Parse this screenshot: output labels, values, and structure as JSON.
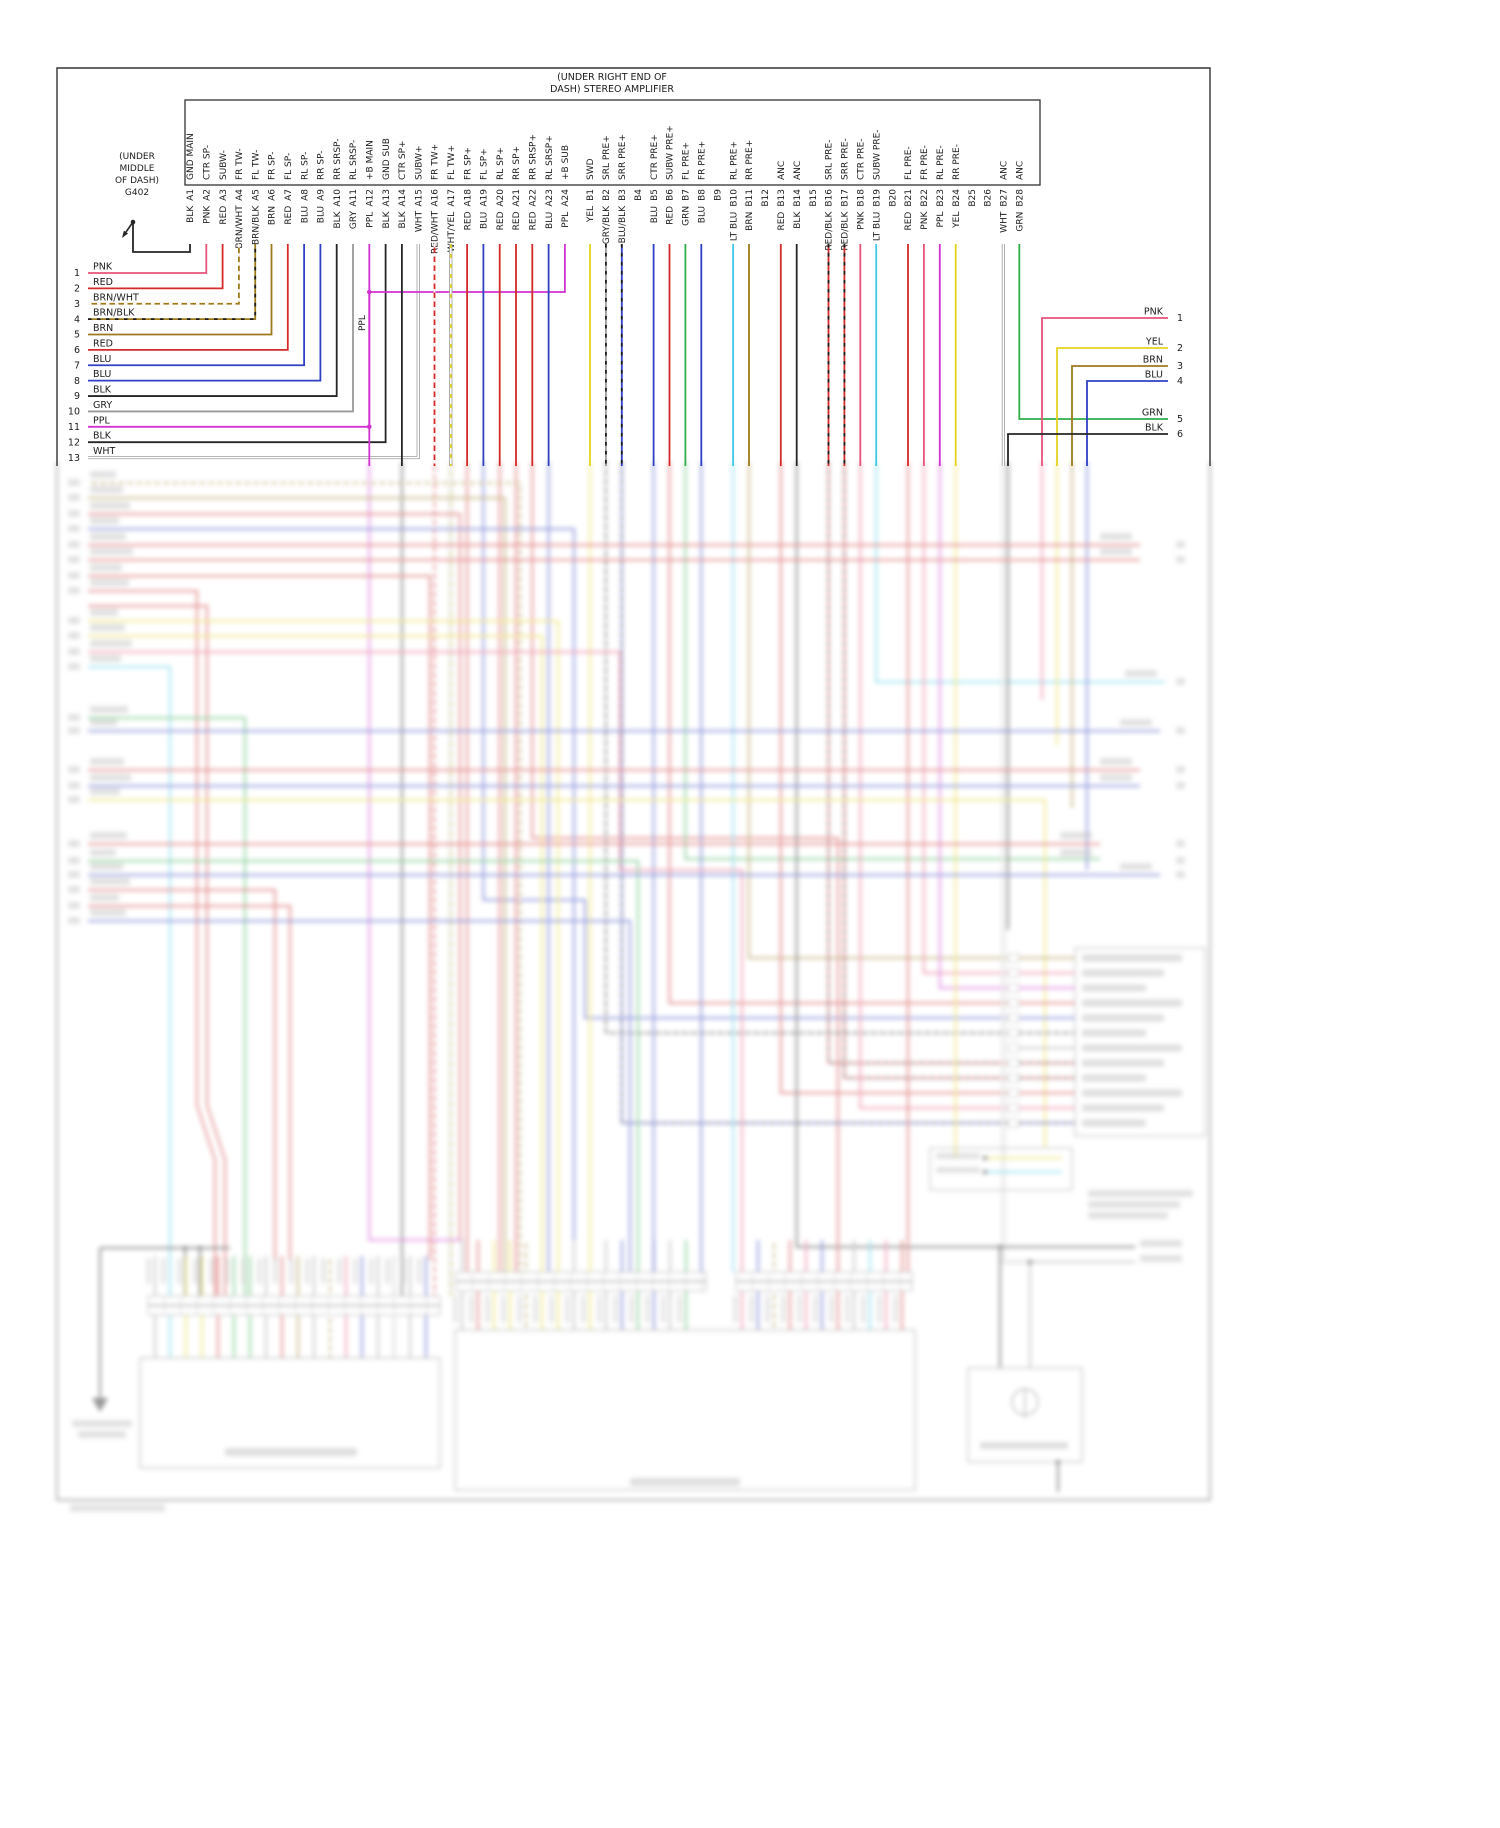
{
  "amplifier": {
    "title_line1": "(UNDER RIGHT END OF",
    "title_line2": "DASH) STEREO AMPLIFIER",
    "a_pins": [
      {
        "id": "A1",
        "signal": "GND MAIN",
        "color": "BLK"
      },
      {
        "id": "A2",
        "signal": "CTR SP-",
        "color": "PNK"
      },
      {
        "id": "A3",
        "signal": "SUBW-",
        "color": "RED"
      },
      {
        "id": "A4",
        "signal": "FR TW-",
        "color": "BRN/WHT"
      },
      {
        "id": "A5",
        "signal": "FL TW-",
        "color": "BRN/BLK"
      },
      {
        "id": "A6",
        "signal": "FR SP-",
        "color": "BRN"
      },
      {
        "id": "A7",
        "signal": "FL SP-",
        "color": "RED"
      },
      {
        "id": "A8",
        "signal": "RL SP-",
        "color": "BLU"
      },
      {
        "id": "A9",
        "signal": "RR SP-",
        "color": "BLU"
      },
      {
        "id": "A10",
        "signal": "RR SRSP-",
        "color": "BLK"
      },
      {
        "id": "A11",
        "signal": "RL SRSP-",
        "color": "GRY"
      },
      {
        "id": "A12",
        "signal": "+B MAIN",
        "color": "PPL"
      },
      {
        "id": "A13",
        "signal": "GND SUB",
        "color": "BLK"
      },
      {
        "id": "A14",
        "signal": "CTR SP+",
        "color": "BLK"
      },
      {
        "id": "A15",
        "signal": "SUBW+",
        "color": "WHT"
      },
      {
        "id": "A16",
        "signal": "FR TW+",
        "color": "RED/WHT"
      },
      {
        "id": "A17",
        "signal": "FL TW+",
        "color": "WHT/YEL"
      },
      {
        "id": "A18",
        "signal": "FR SP+",
        "color": "RED"
      },
      {
        "id": "A19",
        "signal": "FL SP+",
        "color": "BLU"
      },
      {
        "id": "A20",
        "signal": "RL SP+",
        "color": "RED"
      },
      {
        "id": "A21",
        "signal": "RR SP+",
        "color": "RED"
      },
      {
        "id": "A22",
        "signal": "RR SRSP+",
        "color": "RED"
      },
      {
        "id": "A23",
        "signal": "RL SRSP+",
        "color": "BLU"
      },
      {
        "id": "A24",
        "signal": "+B SUB",
        "color": "PPL"
      }
    ],
    "b_pins": [
      {
        "id": "B1",
        "signal": "SWD",
        "color": "YEL"
      },
      {
        "id": "B2",
        "signal": "SRL PRE+",
        "color": "GRY/BLK"
      },
      {
        "id": "B3",
        "signal": "SRR PRE+",
        "color": "BLU/BLK"
      },
      {
        "id": "B4",
        "signal": "",
        "color": ""
      },
      {
        "id": "B5",
        "signal": "CTR PRE+",
        "color": "BLU"
      },
      {
        "id": "B6",
        "signal": "SUBW PRE+",
        "color": "RED"
      },
      {
        "id": "B7",
        "signal": "FL PRE+",
        "color": "GRN"
      },
      {
        "id": "B8",
        "signal": "FR PRE+",
        "color": "BLU"
      },
      {
        "id": "B9",
        "signal": "",
        "color": ""
      },
      {
        "id": "B10",
        "signal": "RL PRE+",
        "color": "LT BLU"
      },
      {
        "id": "B11",
        "signal": "RR PRE+",
        "color": "BRN"
      },
      {
        "id": "B12",
        "signal": "",
        "color": ""
      },
      {
        "id": "B13",
        "signal": "ANC",
        "color": "RED"
      },
      {
        "id": "B14",
        "signal": "ANC",
        "color": "BLK"
      },
      {
        "id": "B15",
        "signal": "",
        "color": ""
      },
      {
        "id": "B16",
        "signal": "SRL PRE-",
        "color": "RED/BLK"
      },
      {
        "id": "B17",
        "signal": "SRR PRE-",
        "color": "RED/BLK"
      },
      {
        "id": "B18",
        "signal": "CTR PRE-",
        "color": "PNK"
      },
      {
        "id": "B19",
        "signal": "SUBW PRE-",
        "color": "LT BLU"
      },
      {
        "id": "B20",
        "signal": "",
        "color": ""
      },
      {
        "id": "B21",
        "signal": "FL PRE-",
        "color": "RED"
      },
      {
        "id": "B22",
        "signal": "FR PRE-",
        "color": "PNK"
      },
      {
        "id": "B23",
        "signal": "RL PRE-",
        "color": "PPL"
      },
      {
        "id": "B24",
        "signal": "RR PRE-",
        "color": "YEL"
      },
      {
        "id": "B25",
        "signal": "",
        "color": ""
      },
      {
        "id": "B26",
        "signal": "",
        "color": ""
      },
      {
        "id": "B27",
        "signal": "ANC",
        "color": "WHT"
      },
      {
        "id": "B28",
        "signal": "ANC",
        "color": "GRN"
      }
    ]
  },
  "ground": {
    "lines": [
      "(UNDER",
      "MIDDLE",
      "OF DASH)",
      "G402"
    ]
  },
  "left_wires": [
    {
      "n": "1",
      "color": "PNK"
    },
    {
      "n": "2",
      "color": "RED"
    },
    {
      "n": "3",
      "color": "BRN/WHT"
    },
    {
      "n": "4",
      "color": "BRN/BLK"
    },
    {
      "n": "5",
      "color": "BRN"
    },
    {
      "n": "6",
      "color": "RED"
    },
    {
      "n": "7",
      "color": "BLU"
    },
    {
      "n": "8",
      "color": "BLU"
    },
    {
      "n": "9",
      "color": "BLK"
    },
    {
      "n": "10",
      "color": "GRY"
    },
    {
      "n": "11",
      "color": "PPL"
    },
    {
      "n": "12",
      "color": "BLK"
    },
    {
      "n": "13",
      "color": "WHT"
    }
  ],
  "right_wires": [
    {
      "n": "1",
      "color": "PNK"
    },
    {
      "n": "2",
      "color": "YEL"
    },
    {
      "n": "3",
      "color": "BRN"
    },
    {
      "n": "4",
      "color": "BLU"
    },
    {
      "n": "5",
      "color": "GRN"
    },
    {
      "n": "6",
      "color": "BLK"
    }
  ],
  "inline_labels": {
    "ppl": "PPL"
  },
  "colors": {
    "BLK": "#262626",
    "PNK": "#e8537a",
    "RED": "#d42a2a",
    "BRN": "#9c7a1c",
    "BLU": "#3040c4",
    "GRY": "#9a9a9a",
    "PPL": "#d133d1",
    "WHT": "#e9e9e9",
    "YEL": "#e6d31f",
    "GRN": "#2fae4a",
    "LT BLU": "#3fc8e8"
  }
}
